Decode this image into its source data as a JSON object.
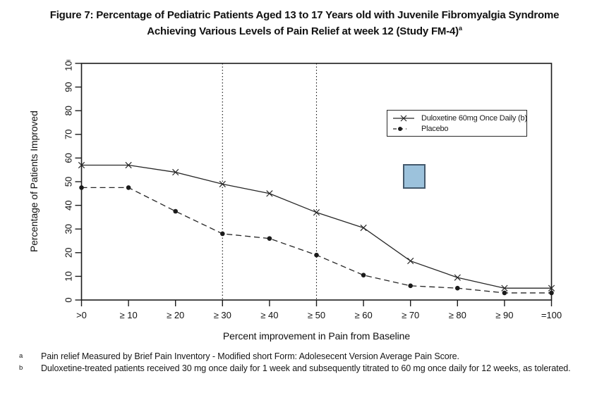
{
  "figure": {
    "title_lines": [
      "Figure 7: Percentage of Pediatric Patients Aged 13 to 17 Years old with Juvenile Fibromyalgia Syndrome",
      "Achieving Various Levels of Pain Relief at week 12 (Study FM-4)"
    ],
    "title_superscript": "a"
  },
  "chart_data": {
    "type": "line",
    "title": "Figure 7: Percentage of Pediatric Patients Aged 13 to 17 Years old with Juvenile Fibromyalgia Syndrome Achieving Various Levels of Pain Relief at week 12 (Study FM-4)a",
    "categories": [
      ">0",
      "≥ 10",
      "≥ 20",
      "≥ 30",
      "≥ 40",
      "≥ 50",
      "≥ 60",
      "≥ 70",
      "≥ 80",
      "≥ 90",
      "=100"
    ],
    "xlabel": "Percent improvement in Pain from Baseline",
    "ylabel": "Percentage of Patients Improved",
    "ylim": [
      0,
      100
    ],
    "y_ticks": [
      0,
      10,
      20,
      30,
      40,
      50,
      60,
      70,
      80,
      90,
      100
    ],
    "grid": false,
    "legend_position": "upper-right-inside",
    "reference_lines": {
      "vertical_at_categories": [
        "≥ 30",
        "≥ 50"
      ],
      "style": "dotted"
    },
    "series": [
      {
        "name": "Duloxetine 60mg Once Daily (b)",
        "marker": "x",
        "line_style": "solid",
        "values": [
          57,
          57,
          54,
          49,
          45,
          37,
          30.5,
          16.5,
          9.5,
          5,
          5
        ]
      },
      {
        "name": "Placebo",
        "marker": "filled-circle",
        "line_style": "dashed",
        "values": [
          47.5,
          47.5,
          37.5,
          28,
          26,
          19,
          10.5,
          6,
          5,
          3,
          3
        ]
      }
    ],
    "line_color": "#262626"
  },
  "overlay_highlight": {
    "fill_color": "#9cc2dc",
    "border_color": "#44596c"
  },
  "footnotes": {
    "a_marker": "a",
    "a_text": "Pain relief Measured by Brief Pain Inventory - Modified short Form: Adolesecent Version Average Pain Score.",
    "b_marker": "b",
    "b_text": "Duloxetine-treated patients received 30 mg once daily for 1 week and subsequently titrated to 60 mg once daily for 12 weeks, as tolerated."
  }
}
